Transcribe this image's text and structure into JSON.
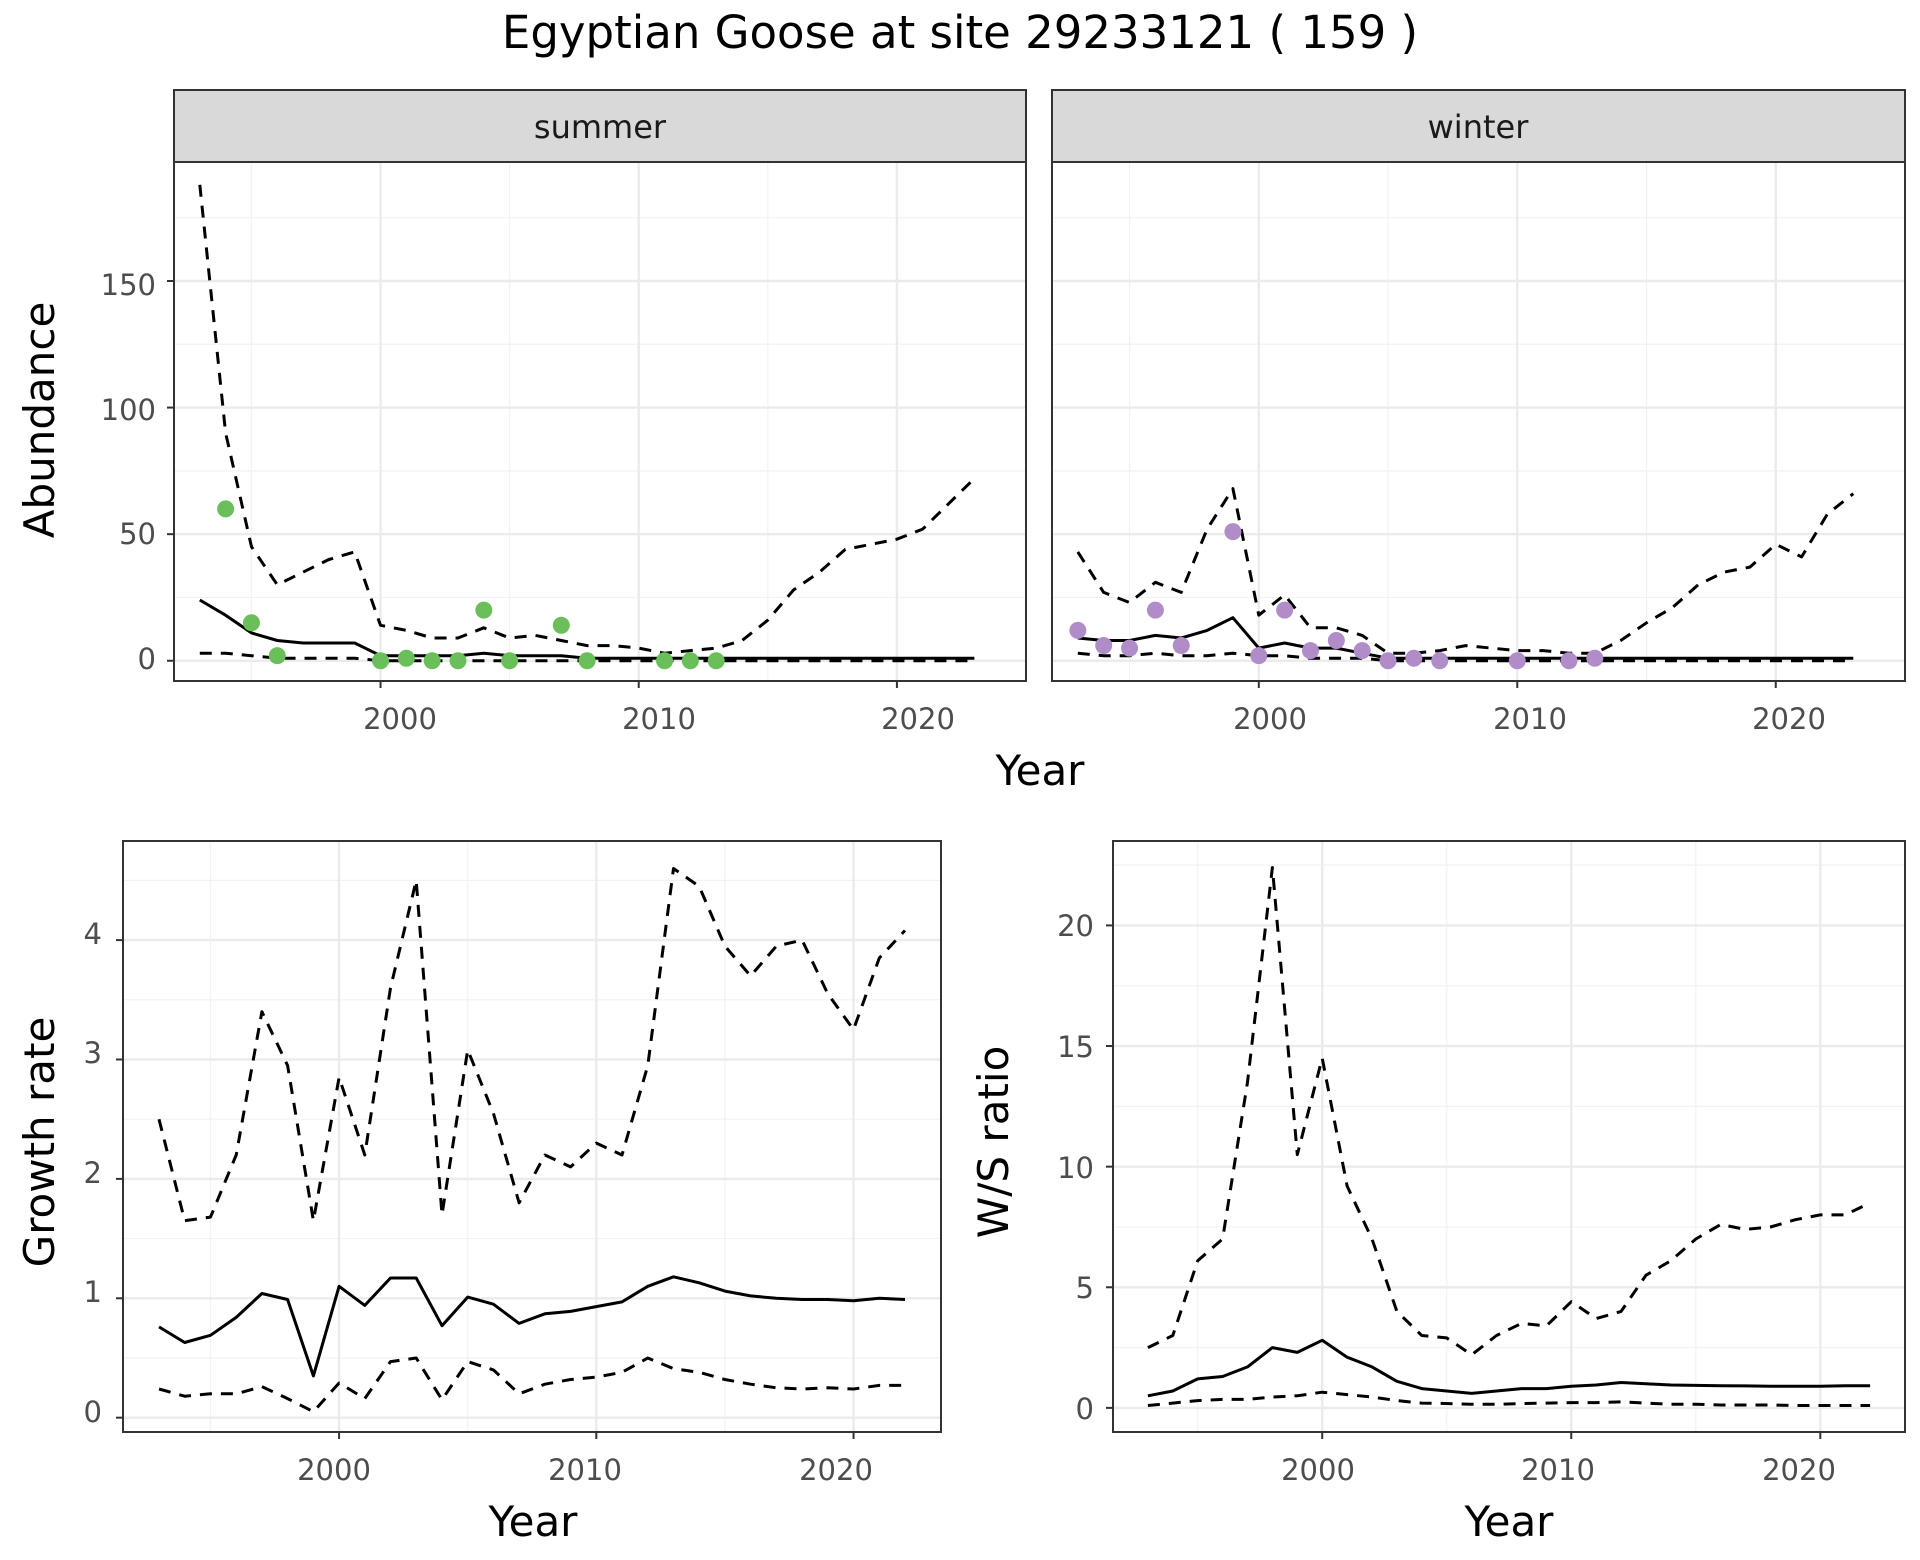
{
  "title": "Egyptian Goose at site 29233121 ( 159 )",
  "colors": {
    "summer_points": "#6abf5a",
    "winter_points": "#b08cc8",
    "lines": "#000000",
    "grid_major": "#ebebeb",
    "grid_minor": "#f2f2f2",
    "strip_fill": "#d9d9d9",
    "tick_text": "#4d4d4d"
  },
  "chart_data": [
    {
      "type": "line",
      "facet": "summer",
      "xlabel": "Year",
      "ylabel": "Abundance",
      "xlim": [
        1992,
        2025
      ],
      "ylim": [
        -8,
        197
      ],
      "xticks": [
        2000,
        2010,
        2020
      ],
      "yticks": [
        0,
        50,
        100,
        150
      ],
      "grid": true,
      "series": [
        {
          "role": "fit",
          "style": "solid",
          "x": [
            1993,
            1994,
            1995,
            1996,
            1997,
            1998,
            1999,
            2000,
            2001,
            2002,
            2003,
            2004,
            2005,
            2006,
            2007,
            2008,
            2009,
            2010,
            2011,
            2012,
            2013,
            2014,
            2015,
            2016,
            2017,
            2018,
            2019,
            2020,
            2021,
            2022,
            2023
          ],
          "y": [
            24,
            18,
            11,
            8,
            7,
            7,
            7,
            2,
            2,
            2,
            2,
            3,
            2,
            2,
            2,
            1,
            1,
            1,
            1,
            1,
            1,
            1,
            1,
            1,
            1,
            1,
            1,
            1,
            1,
            1,
            1
          ]
        },
        {
          "role": "upper",
          "style": "dashed",
          "x": [
            1993,
            1994,
            1995,
            1996,
            1997,
            1998,
            1999,
            2000,
            2001,
            2002,
            2003,
            2004,
            2005,
            2006,
            2007,
            2008,
            2009,
            2010,
            2011,
            2012,
            2013,
            2014,
            2015,
            2016,
            2017,
            2018,
            2019,
            2020,
            2021,
            2022,
            2023
          ],
          "y": [
            188,
            90,
            45,
            30,
            35,
            40,
            43,
            14,
            12,
            9,
            9,
            13,
            9,
            10,
            8,
            6,
            6,
            5,
            3,
            4,
            5,
            8,
            16,
            28,
            35,
            44,
            46,
            48,
            52,
            62,
            72
          ]
        },
        {
          "role": "lower",
          "style": "dashed",
          "x": [
            1993,
            1994,
            1995,
            1996,
            1997,
            1998,
            1999,
            2000,
            2001,
            2002,
            2003,
            2004,
            2005,
            2006,
            2007,
            2008,
            2009,
            2010,
            2011,
            2012,
            2013,
            2014,
            2015,
            2016,
            2017,
            2018,
            2019,
            2020,
            2021,
            2022,
            2023
          ],
          "y": [
            3,
            3,
            2,
            1,
            1,
            1,
            1,
            0,
            0,
            0,
            0,
            0,
            0,
            0,
            0,
            0,
            0,
            0,
            0,
            0,
            0,
            0,
            0,
            0,
            0,
            0,
            0,
            0,
            0,
            0,
            0
          ]
        },
        {
          "role": "observed",
          "style": "points",
          "color": "#6abf5a",
          "x": [
            1994,
            1995,
            1996,
            2000,
            2001,
            2002,
            2003,
            2004,
            2005,
            2007,
            2008,
            2011,
            2012,
            2013
          ],
          "y": [
            60,
            15,
            2,
            0,
            1,
            0,
            0,
            20,
            0,
            14,
            0,
            0,
            0,
            0
          ]
        }
      ]
    },
    {
      "type": "line",
      "facet": "winter",
      "xlabel": "Year",
      "ylabel": "Abundance",
      "xlim": [
        1992,
        2025
      ],
      "ylim": [
        -8,
        197
      ],
      "xticks": [
        2000,
        2010,
        2020
      ],
      "yticks": [
        0,
        50,
        100,
        150
      ],
      "grid": true,
      "series": [
        {
          "role": "fit",
          "style": "solid",
          "x": [
            1993,
            1994,
            1995,
            1996,
            1997,
            1998,
            1999,
            2000,
            2001,
            2002,
            2003,
            2004,
            2005,
            2006,
            2007,
            2008,
            2009,
            2010,
            2011,
            2012,
            2013,
            2014,
            2015,
            2016,
            2017,
            2018,
            2019,
            2020,
            2021,
            2022,
            2023
          ],
          "y": [
            9,
            8,
            8,
            10,
            9,
            12,
            17,
            5,
            7,
            5,
            5,
            3,
            1,
            1,
            1,
            1,
            1,
            1,
            1,
            1,
            1,
            1,
            1,
            1,
            1,
            1,
            1,
            1,
            1,
            1,
            1
          ]
        },
        {
          "role": "upper",
          "style": "dashed",
          "x": [
            1993,
            1994,
            1995,
            1996,
            1997,
            1998,
            1999,
            2000,
            2001,
            2002,
            2003,
            2004,
            2005,
            2006,
            2007,
            2008,
            2009,
            2010,
            2011,
            2012,
            2013,
            2014,
            2015,
            2016,
            2017,
            2018,
            2019,
            2020,
            2021,
            2022,
            2023
          ],
          "y": [
            43,
            27,
            23,
            31,
            27,
            52,
            68,
            18,
            26,
            13,
            13,
            10,
            3,
            3,
            4,
            6,
            5,
            4,
            4,
            3,
            3,
            8,
            15,
            21,
            30,
            35,
            37,
            46,
            41,
            58,
            66
          ]
        },
        {
          "role": "lower",
          "style": "dashed",
          "x": [
            1993,
            1994,
            1995,
            1996,
            1997,
            1998,
            1999,
            2000,
            2001,
            2002,
            2003,
            2004,
            2005,
            2006,
            2007,
            2008,
            2009,
            2010,
            2011,
            2012,
            2013,
            2014,
            2015,
            2016,
            2017,
            2018,
            2019,
            2020,
            2021,
            2022,
            2023
          ],
          "y": [
            3,
            2,
            2,
            3,
            2,
            2,
            3,
            2,
            2,
            1,
            1,
            1,
            0,
            0,
            0,
            0,
            0,
            0,
            0,
            0,
            0,
            0,
            0,
            0,
            0,
            0,
            0,
            0,
            0,
            0,
            0
          ]
        },
        {
          "role": "observed",
          "style": "points",
          "color": "#b08cc8",
          "x": [
            1993,
            1994,
            1995,
            1996,
            1997,
            1999,
            2000,
            2001,
            2002,
            2003,
            2004,
            2005,
            2006,
            2007,
            2010,
            2012,
            2013
          ],
          "y": [
            12,
            6,
            5,
            20,
            6,
            51,
            2,
            20,
            4,
            8,
            4,
            0,
            1,
            0,
            0,
            0,
            1
          ]
        }
      ]
    },
    {
      "type": "line",
      "xlabel": "Year",
      "ylabel": "Growth rate",
      "xlim": [
        1991.6,
        2023.4
      ],
      "ylim": [
        -0.12,
        4.83
      ],
      "xticks": [
        2000,
        2010,
        2020
      ],
      "yticks": [
        0,
        1,
        2,
        3,
        4
      ],
      "grid": true,
      "series": [
        {
          "role": "fit",
          "style": "solid",
          "x": [
            1993,
            1994,
            1995,
            1996,
            1997,
            1998,
            1999,
            2000,
            2001,
            2002,
            2003,
            2004,
            2005,
            2006,
            2007,
            2008,
            2009,
            2010,
            2011,
            2012,
            2013,
            2014,
            2015,
            2016,
            2017,
            2018,
            2019,
            2020,
            2021,
            2022
          ],
          "y": [
            0.76,
            0.63,
            0.69,
            0.84,
            1.04,
            0.99,
            0.35,
            1.1,
            0.94,
            1.17,
            1.17,
            0.77,
            1.01,
            0.95,
            0.79,
            0.87,
            0.89,
            0.93,
            0.97,
            1.1,
            1.18,
            1.13,
            1.06,
            1.02,
            1.0,
            0.99,
            0.99,
            0.98,
            1.0,
            0.99
          ]
        },
        {
          "role": "upper",
          "style": "dashed",
          "x": [
            1993,
            1994,
            1995,
            1996,
            1997,
            1998,
            1999,
            2000,
            2001,
            2002,
            2003,
            2004,
            2005,
            2006,
            2007,
            2008,
            2009,
            2010,
            2011,
            2012,
            2013,
            2014,
            2015,
            2016,
            2017,
            2018,
            2019,
            2020,
            2021,
            2022
          ],
          "y": [
            2.5,
            1.65,
            1.68,
            2.2,
            3.4,
            2.95,
            1.65,
            2.85,
            2.2,
            3.6,
            4.5,
            1.7,
            3.08,
            2.55,
            1.8,
            2.2,
            2.1,
            2.3,
            2.2,
            2.95,
            4.6,
            4.45,
            3.95,
            3.7,
            3.95,
            4.0,
            3.55,
            3.25,
            3.85,
            4.08
          ]
        },
        {
          "role": "lower",
          "style": "dashed",
          "x": [
            1993,
            1994,
            1995,
            1996,
            1997,
            1998,
            1999,
            2000,
            2001,
            2002,
            2003,
            2004,
            2005,
            2006,
            2007,
            2008,
            2009,
            2010,
            2011,
            2012,
            2013,
            2014,
            2015,
            2016,
            2017,
            2018,
            2019,
            2020,
            2021,
            2022
          ],
          "y": [
            0.24,
            0.18,
            0.2,
            0.2,
            0.26,
            0.16,
            0.05,
            0.29,
            0.16,
            0.47,
            0.5,
            0.15,
            0.47,
            0.4,
            0.2,
            0.28,
            0.32,
            0.34,
            0.38,
            0.5,
            0.41,
            0.38,
            0.32,
            0.28,
            0.25,
            0.24,
            0.25,
            0.24,
            0.27,
            0.27
          ]
        }
      ]
    },
    {
      "type": "line",
      "xlabel": "Year",
      "ylabel": "W/S ratio",
      "xlim": [
        1991.6,
        2023.4
      ],
      "ylim": [
        -1.0,
        23.5
      ],
      "xticks": [
        2000,
        2010,
        2020
      ],
      "yticks": [
        0,
        5,
        10,
        15,
        20
      ],
      "grid": true,
      "series": [
        {
          "role": "fit",
          "style": "solid",
          "x": [
            1993,
            1994,
            1995,
            1996,
            1997,
            1998,
            1999,
            2000,
            2001,
            2002,
            2003,
            2004,
            2005,
            2006,
            2007,
            2008,
            2009,
            2010,
            2011,
            2012,
            2013,
            2014,
            2015,
            2016,
            2017,
            2018,
            2019,
            2020,
            2021,
            2022
          ],
          "y": [
            0.5,
            0.7,
            1.2,
            1.3,
            1.7,
            2.5,
            2.3,
            2.8,
            2.1,
            1.7,
            1.1,
            0.8,
            0.7,
            0.6,
            0.7,
            0.8,
            0.8,
            0.9,
            0.95,
            1.05,
            1.0,
            0.95,
            0.93,
            0.92,
            0.91,
            0.9,
            0.9,
            0.9,
            0.92,
            0.92
          ]
        },
        {
          "role": "upper",
          "style": "dashed",
          "x": [
            1993,
            1994,
            1995,
            1996,
            1997,
            1998,
            1999,
            2000,
            2001,
            2002,
            2003,
            2004,
            2005,
            2006,
            2007,
            2008,
            2009,
            2010,
            2011,
            2012,
            2013,
            2014,
            2015,
            2016,
            2017,
            2018,
            2019,
            2020,
            2021,
            2022
          ],
          "y": [
            2.5,
            3.0,
            6.1,
            7.0,
            13.5,
            22.4,
            10.5,
            14.5,
            9.2,
            7.0,
            4.0,
            3.0,
            2.9,
            2.2,
            3.0,
            3.5,
            3.4,
            4.4,
            3.7,
            4.0,
            5.5,
            6.1,
            7.0,
            7.6,
            7.4,
            7.5,
            7.8,
            8.0,
            8.0,
            8.5
          ]
        },
        {
          "role": "lower",
          "style": "dashed",
          "x": [
            1993,
            1994,
            1995,
            1996,
            1997,
            1998,
            1999,
            2000,
            2001,
            2002,
            2003,
            2004,
            2005,
            2006,
            2007,
            2008,
            2009,
            2010,
            2011,
            2012,
            2013,
            2014,
            2015,
            2016,
            2017,
            2018,
            2019,
            2020,
            2021,
            2022
          ],
          "y": [
            0.1,
            0.2,
            0.3,
            0.35,
            0.35,
            0.45,
            0.5,
            0.65,
            0.55,
            0.45,
            0.3,
            0.2,
            0.18,
            0.15,
            0.15,
            0.18,
            0.2,
            0.22,
            0.22,
            0.25,
            0.2,
            0.15,
            0.15,
            0.12,
            0.12,
            0.12,
            0.1,
            0.1,
            0.1,
            0.1
          ]
        }
      ]
    }
  ],
  "panels": [
    {
      "strip": "summer",
      "yticks": [
        "0",
        "50",
        "100",
        "150"
      ],
      "xticks": [
        "2000",
        "2010",
        "2020"
      ]
    },
    {
      "strip": "winter",
      "xticks": [
        "2000",
        "2010",
        "2020"
      ]
    },
    {
      "yticks": [
        "0",
        "1",
        "2",
        "3",
        "4"
      ],
      "xticks": [
        "2000",
        "2010",
        "2020"
      ],
      "xlabel": "Year",
      "ylabel": "Growth rate"
    },
    {
      "yticks": [
        "0",
        "5",
        "10",
        "15",
        "20"
      ],
      "xticks": [
        "2000",
        "2010",
        "2020"
      ],
      "xlabel": "Year",
      "ylabel": "W/S ratio"
    }
  ],
  "shared": {
    "xlabel": "Year",
    "ylabel": "Abundance"
  }
}
